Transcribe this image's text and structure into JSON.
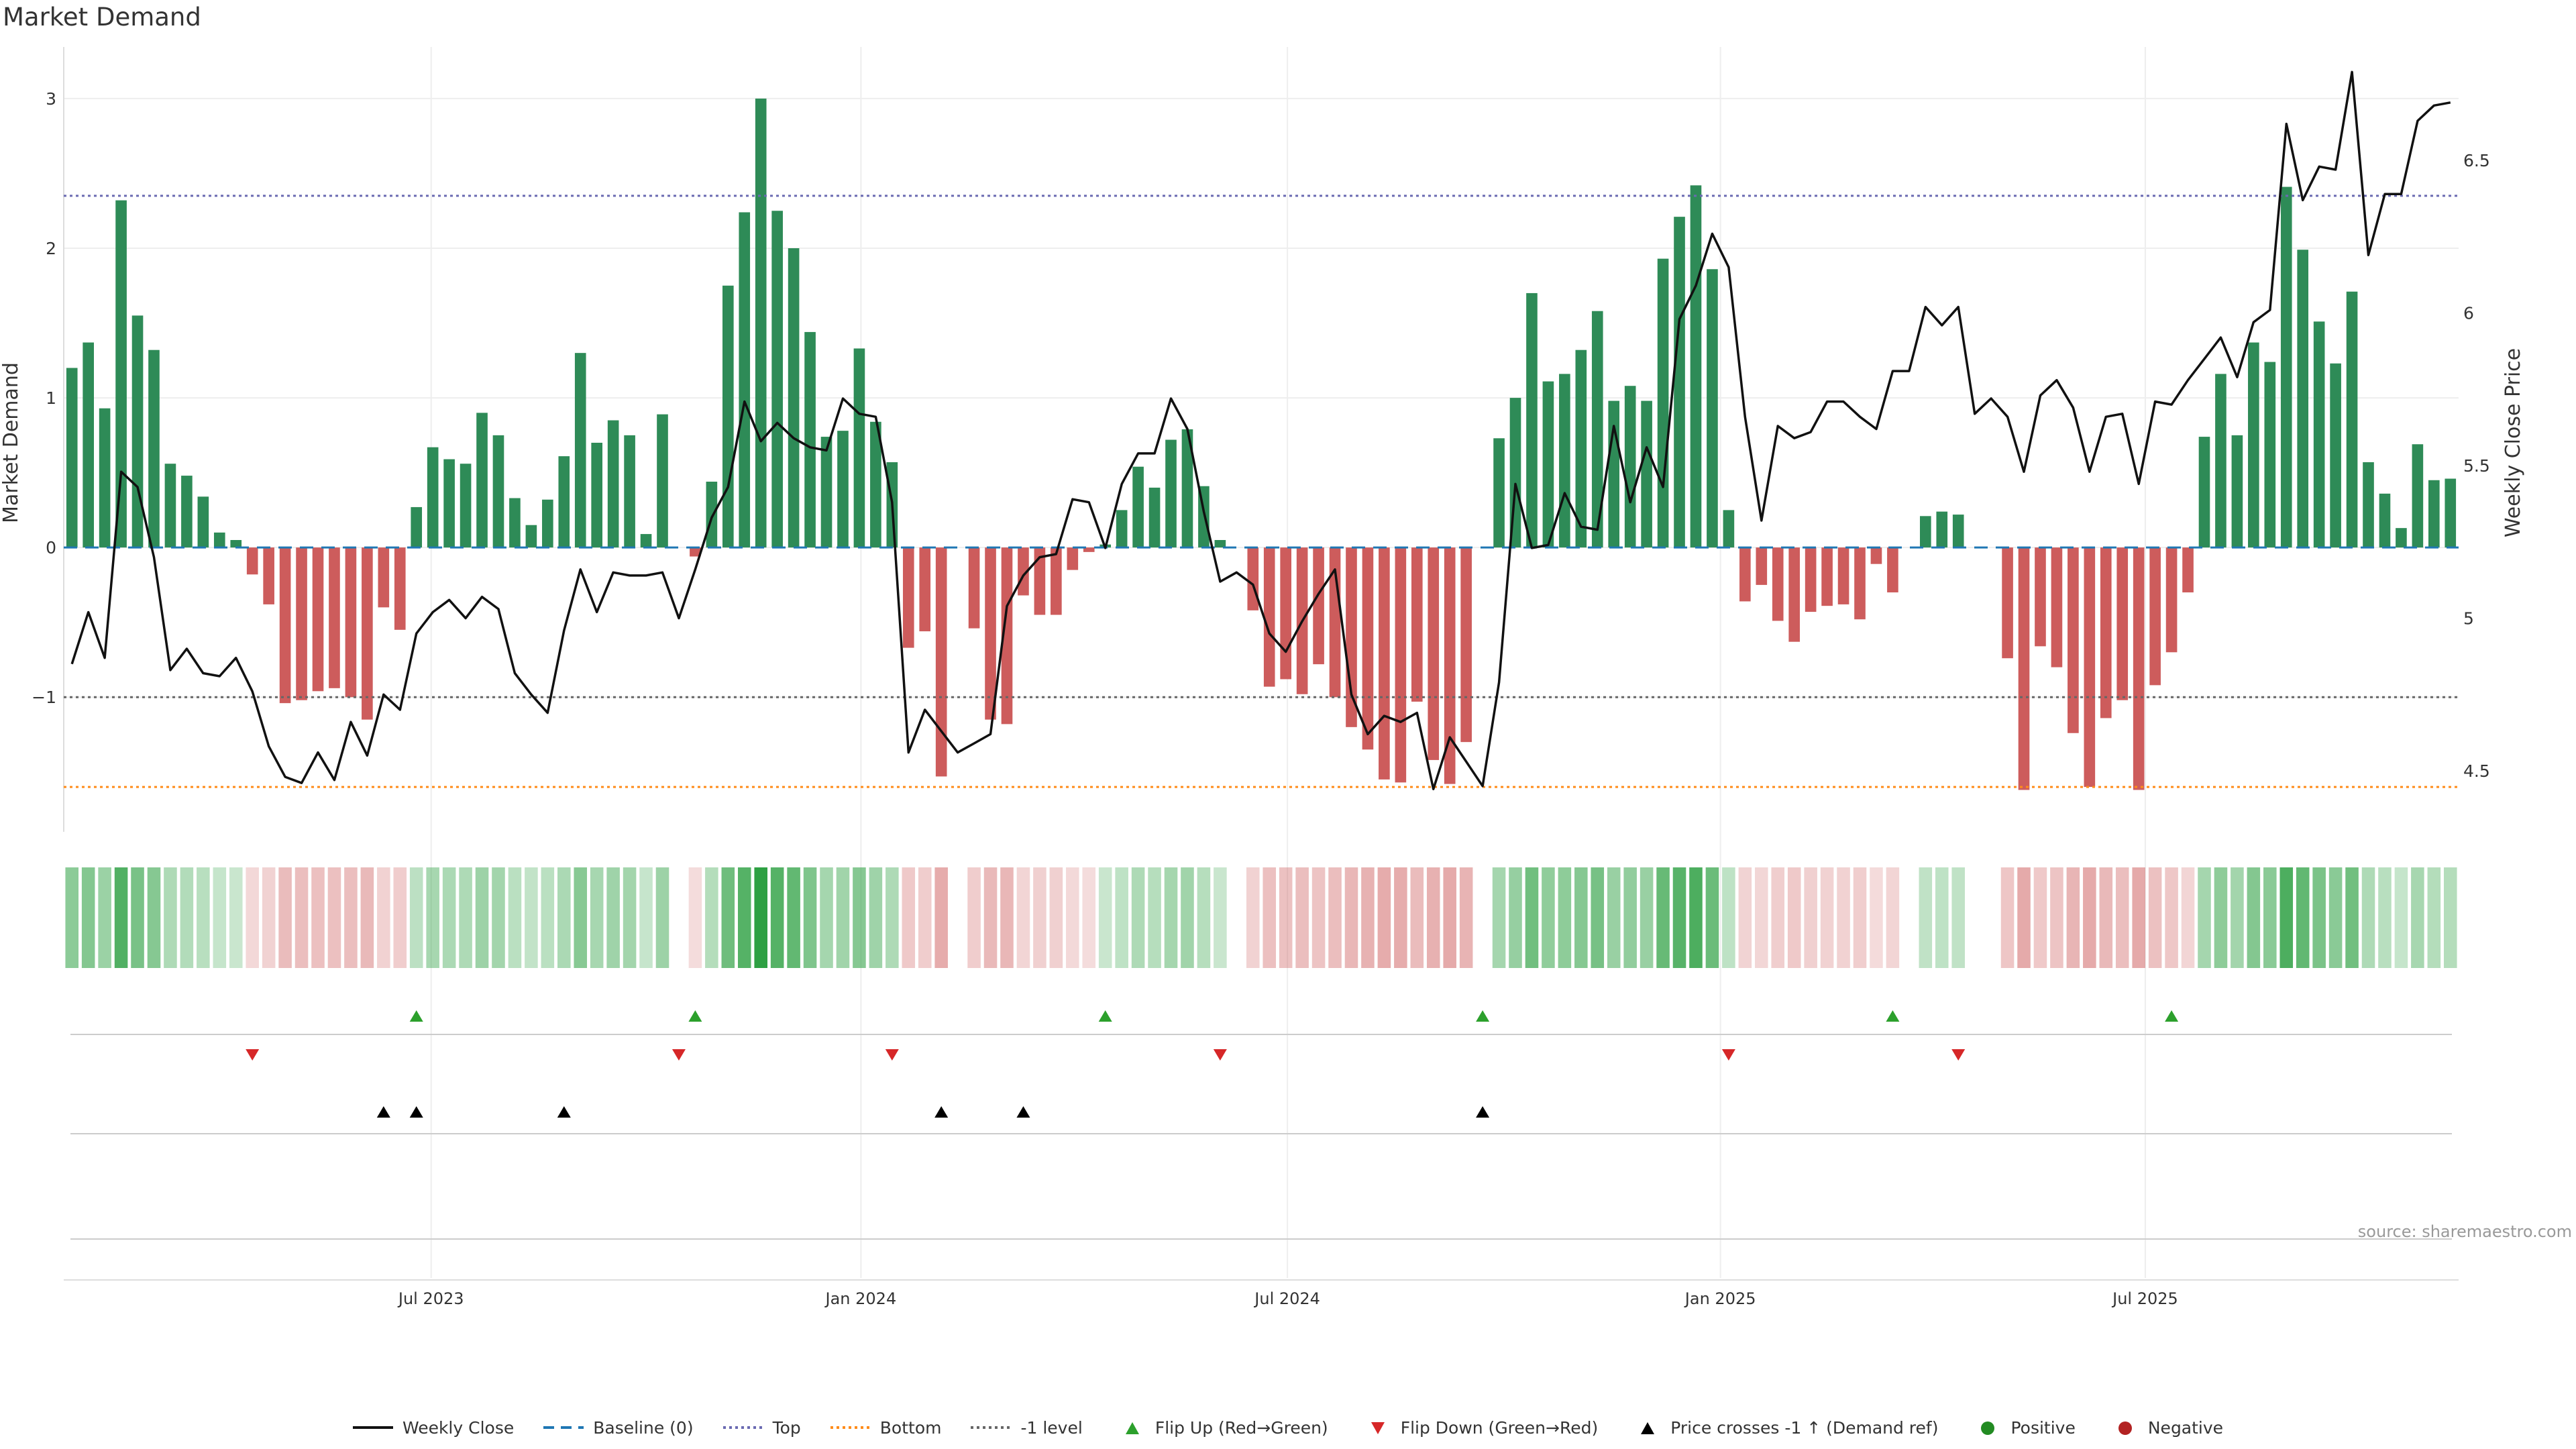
{
  "title": "Market Demand",
  "source": "source: sharemaestro.com",
  "colors": {
    "positive": "#2e8b57",
    "negative": "#cd5c5c",
    "price": "#111111",
    "baseline": "#1f77b4",
    "top": "#6a6ab2",
    "bottom": "#ff8c1a",
    "minus_one": "#666666",
    "flip_up": "#2ca02c",
    "flip_down": "#d62728",
    "cross": "#000000"
  },
  "legend": [
    {
      "label": "Weekly Close",
      "kind": "line-solid",
      "color": "#111111"
    },
    {
      "label": "Baseline (0)",
      "kind": "line-dash",
      "color": "#1f77b4"
    },
    {
      "label": "Top",
      "kind": "line-dot",
      "color": "#6a6ab2"
    },
    {
      "label": "Bottom",
      "kind": "line-dot",
      "color": "#ff8c1a"
    },
    {
      "label": "-1 level",
      "kind": "line-dot",
      "color": "#666666"
    },
    {
      "label": "Flip Up (Red→Green)",
      "kind": "tri-up",
      "color": "#2ca02c"
    },
    {
      "label": "Flip Down (Green→Red)",
      "kind": "tri-down",
      "color": "#d62728"
    },
    {
      "label": "Price crosses -1 ↑ (Demand ref)",
      "kind": "tri-up",
      "color": "#000000"
    },
    {
      "label": "Positive",
      "kind": "dot",
      "color": "#228b22"
    },
    {
      "label": "Negative",
      "kind": "dot",
      "color": "#b22222"
    }
  ],
  "chart_data": {
    "type": "bar",
    "title": "Market Demand",
    "ylabel": "Market Demand",
    "y2label": "Weekly Close Price",
    "ylim": [
      -1.9,
      3.3
    ],
    "y2lim": [
      4.3,
      6.85
    ],
    "yticks": [
      -1,
      0,
      1,
      2,
      3
    ],
    "y2ticks": [
      4.5,
      5,
      5.5,
      6,
      6.5
    ],
    "xticks": [
      {
        "label": "Jul 2023",
        "index": 21.9
      },
      {
        "label": "Jan 2024",
        "index": 48.1
      },
      {
        "label": "Jul 2024",
        "index": 74.1
      },
      {
        "label": "Jan 2025",
        "index": 100.5
      },
      {
        "label": "Jul 2025",
        "index": 126.4
      }
    ],
    "levels": {
      "baseline": 0,
      "top": 2.35,
      "bottom": -1.6,
      "minus_one": -1
    },
    "demand": [
      1.2,
      1.37,
      0.93,
      2.32,
      1.55,
      1.32,
      0.56,
      0.48,
      0.34,
      0.1,
      0.05,
      -0.18,
      -0.38,
      -1.04,
      -1.02,
      -0.96,
      -0.94,
      -1.0,
      -1.15,
      -0.4,
      -0.55,
      0.27,
      0.67,
      0.59,
      0.56,
      0.9,
      0.75,
      0.33,
      0.15,
      0.32,
      0.61,
      1.3,
      0.7,
      0.85,
      0.75,
      0.09,
      0.89,
      0.0,
      -0.06,
      0.44,
      1.75,
      2.24,
      3.0,
      2.25,
      2.0,
      1.44,
      0.74,
      0.78,
      1.33,
      0.84,
      0.57,
      -0.67,
      -0.56,
      -1.53,
      0.0,
      -0.54,
      -1.15,
      -1.18,
      -0.32,
      -0.45,
      -0.45,
      -0.15,
      -0.03,
      0.02,
      0.25,
      0.54,
      0.4,
      0.72,
      0.79,
      0.41,
      0.05,
      0.0,
      -0.42,
      -0.93,
      -0.88,
      -0.98,
      -0.78,
      -1.0,
      -1.2,
      -1.35,
      -1.55,
      -1.57,
      -1.03,
      -1.42,
      -1.58,
      -1.3,
      0.0,
      0.73,
      1.0,
      1.7,
      1.11,
      1.16,
      1.32,
      1.58,
      0.98,
      1.08,
      0.98,
      1.93,
      2.21,
      2.42,
      1.86,
      0.25,
      -0.36,
      -0.25,
      -0.49,
      -0.63,
      -0.43,
      -0.39,
      -0.38,
      -0.48,
      -0.11,
      -0.3,
      0.0,
      0.21,
      0.24,
      0.22,
      0.0,
      0.0,
      -0.74,
      -1.62,
      -0.66,
      -0.8,
      -1.24,
      -1.6,
      -1.14,
      -1.02,
      -1.62,
      -0.92,
      -0.7,
      -0.3,
      0.74,
      1.16,
      0.75,
      1.37,
      1.24,
      2.41,
      1.99,
      1.51,
      1.23,
      1.71,
      0.57,
      0.36,
      0.13,
      0.69,
      0.45,
      0.46
    ],
    "weekly_close": [
      4.85,
      5.02,
      4.87,
      5.48,
      5.43,
      5.2,
      4.83,
      4.9,
      4.82,
      4.81,
      4.87,
      4.76,
      4.58,
      4.48,
      4.46,
      4.56,
      4.47,
      4.66,
      4.55,
      4.75,
      4.7,
      4.95,
      5.02,
      5.06,
      5.0,
      5.07,
      5.03,
      4.82,
      4.75,
      4.69,
      4.96,
      5.16,
      5.02,
      5.15,
      5.14,
      5.14,
      5.15,
      5.0,
      5.16,
      5.33,
      5.43,
      5.71,
      5.58,
      5.64,
      5.59,
      5.56,
      5.55,
      5.72,
      5.67,
      5.66,
      5.38,
      4.56,
      4.7,
      4.63,
      4.56,
      4.59,
      4.62,
      5.04,
      5.14,
      5.2,
      5.21,
      5.39,
      5.38,
      5.23,
      5.44,
      5.54,
      5.54,
      5.72,
      5.62,
      5.35,
      5.12,
      5.15,
      5.11,
      4.95,
      4.89,
      4.99,
      5.08,
      5.16,
      4.75,
      4.62,
      4.68,
      4.66,
      4.69,
      4.44,
      4.61,
      4.53,
      4.45,
      4.79,
      5.44,
      5.23,
      5.24,
      5.41,
      5.3,
      5.29,
      5.63,
      5.38,
      5.56,
      5.43,
      5.98,
      6.09,
      6.26,
      6.15,
      5.66,
      5.32,
      5.63,
      5.59,
      5.61,
      5.71,
      5.71,
      5.66,
      5.62,
      5.81,
      5.81,
      6.02,
      5.96,
      6.02,
      5.67,
      5.72,
      5.66,
      5.48,
      5.73,
      5.78,
      5.69,
      5.48,
      5.66,
      5.67,
      5.44,
      5.71,
      5.7,
      5.78,
      5.85,
      5.92,
      5.79,
      5.97,
      6.01,
      6.62,
      6.37,
      6.48,
      6.47,
      6.79,
      6.19,
      6.39,
      6.39,
      6.63,
      6.68,
      6.69
    ],
    "flip_up_idx": [
      21,
      38,
      63,
      86,
      111,
      128
    ],
    "flip_down_idx": [
      11,
      37,
      50,
      70,
      101,
      115
    ],
    "cross_idx": [
      19,
      21,
      30,
      53,
      58,
      86
    ]
  }
}
